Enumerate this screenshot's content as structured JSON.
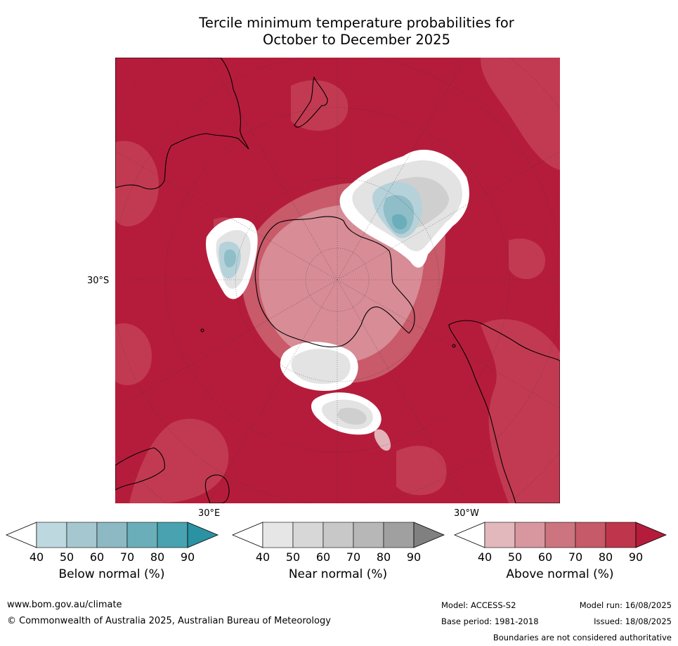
{
  "title": {
    "line1": "Tercile minimum temperature probabilities for",
    "line2": "October to December 2025"
  },
  "map": {
    "labels": {
      "lat_30s": "30°S",
      "lon_30e": "30°E",
      "lon_30w": "30°W"
    },
    "colors": {
      "above_max": "#b51c3b",
      "above_80": "#c23a52",
      "above_70": "#c85a6a",
      "above_60": "#d78c96",
      "above_50": "#e2b3b9",
      "near_white": "#ffffff",
      "near_light": "#e3e3e3",
      "near_mid": "#cfcfcf",
      "below_light": "#b5d2da",
      "below_mid": "#8fbdc8",
      "below_dark": "#6aaebb",
      "coastline": "#000000",
      "border": "#888888"
    }
  },
  "colorbars": [
    {
      "title": "Below normal (%)",
      "ticks": [
        "40",
        "50",
        "60",
        "70",
        "80",
        "90"
      ],
      "colors": [
        "#ffffff",
        "#bed8df",
        "#a5c8d0",
        "#8cb9c4",
        "#6aaeb9",
        "#48a2b0",
        "#2b92a4"
      ]
    },
    {
      "title": "Near normal (%)",
      "ticks": [
        "40",
        "50",
        "60",
        "70",
        "80",
        "90"
      ],
      "colors": [
        "#ffffff",
        "#e6e6e6",
        "#d7d7d7",
        "#c8c8c8",
        "#b7b7b7",
        "#a0a0a0",
        "#808080"
      ]
    },
    {
      "title": "Above normal (%)",
      "ticks": [
        "40",
        "50",
        "60",
        "70",
        "80",
        "90"
      ],
      "colors": [
        "#ffffff",
        "#e3b8bd",
        "#d8979f",
        "#cc747f",
        "#c65a68",
        "#bf364c",
        "#b51c3b"
      ]
    }
  ],
  "footer": {
    "website": "www.bom.gov.au/climate",
    "copyright": "© Commonwealth of Australia 2025, Australian Bureau of Meteorology",
    "model": "Model: ACCESS-S2",
    "model_run": "Model run: 16/08/2025",
    "base_period": "Base period: 1981-2018",
    "issued": "Issued: 18/08/2025",
    "disclaimer": "Boundaries are not considered authoritative"
  }
}
